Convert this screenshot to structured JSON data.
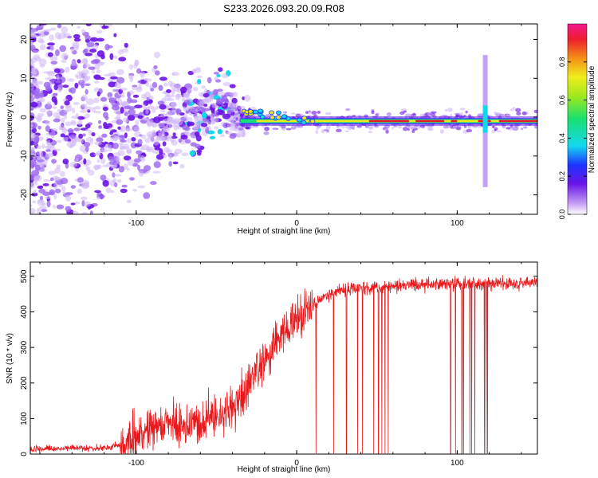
{
  "title": "S233.2026.093.20.09.R08",
  "colors": {
    "axis": "#000000",
    "snr_line": "#e8191c",
    "dot_light": "#cfb7f5",
    "dot_mid": "#9a66f0",
    "dot_dark": "#6a14e6",
    "dot_cyan": "#12d8e8",
    "band_green": "#19e07a",
    "band_yellow": "#eaea1e",
    "band_red": "#e81c2c"
  },
  "chart_data": [
    {
      "type": "heatmap",
      "xlabel": "Height of straight line (km)",
      "ylabel": "Frequency (Hz)",
      "xlim": [
        -166,
        150
      ],
      "ylim": [
        -25,
        24
      ],
      "xticks": [
        -100,
        0,
        100
      ],
      "xtick_labels": [
        "-100",
        "0",
        "100"
      ],
      "yticks": [
        -20,
        -10,
        0,
        10,
        20
      ],
      "ytick_labels": [
        "-20",
        "-10",
        "0",
        "10",
        "20"
      ],
      "colorbar": {
        "label": "Normalized spectral amplitude",
        "range": [
          0,
          1
        ],
        "ticks": [
          0.0,
          0.2,
          0.4,
          0.6,
          0.8
        ],
        "tick_labels": [
          "0.0",
          "0.2",
          "0.4",
          "0.6",
          "0.8"
        ]
      },
      "bands": [
        {
          "x0": -35,
          "x1": 150,
          "center_hz": -1,
          "amplitude": 0.95
        },
        {
          "x0": 116,
          "x1": 119,
          "spike_from_hz": -18,
          "spike_to_hz": 16,
          "amplitude": 0.1
        }
      ]
    },
    {
      "type": "line",
      "xlabel": "Height of straight line (km)",
      "ylabel": "SNR (10 * v/v)",
      "xlim": [
        -166,
        150
      ],
      "ylim": [
        0,
        540
      ],
      "xticks": [
        -100,
        0,
        100
      ],
      "xtick_labels": [
        "-100",
        "0",
        "100"
      ],
      "yticks": [
        0,
        100,
        200,
        300,
        400,
        500
      ],
      "ytick_labels": [
        "0",
        "100",
        "200",
        "300",
        "400",
        "500"
      ],
      "profile": [
        {
          "x": -166,
          "y": 15
        },
        {
          "x": -120,
          "y": 18
        },
        {
          "x": -110,
          "y": 25
        },
        {
          "x": -100,
          "y": 45
        },
        {
          "x": -90,
          "y": 70
        },
        {
          "x": -60,
          "y": 90
        },
        {
          "x": -40,
          "y": 120
        },
        {
          "x": -30,
          "y": 190
        },
        {
          "x": -20,
          "y": 260
        },
        {
          "x": -10,
          "y": 330
        },
        {
          "x": 0,
          "y": 380
        },
        {
          "x": 10,
          "y": 420
        },
        {
          "x": 20,
          "y": 450
        },
        {
          "x": 30,
          "y": 460
        },
        {
          "x": 50,
          "y": 470
        },
        {
          "x": 100,
          "y": 480
        },
        {
          "x": 150,
          "y": 480
        }
      ],
      "dropouts": [
        12,
        23,
        31,
        38,
        41,
        48,
        51,
        53,
        55,
        57,
        96,
        99,
        103,
        104,
        108,
        109,
        111,
        117,
        118,
        119
      ]
    }
  ]
}
